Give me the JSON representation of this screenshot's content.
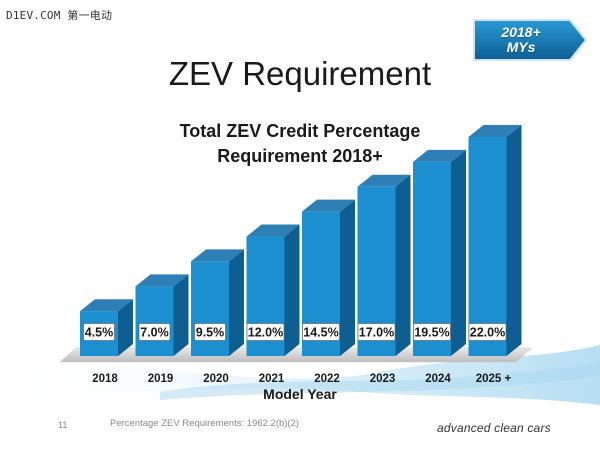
{
  "watermark": "D1EV.COM 第一电动",
  "badge": {
    "line1": "2018+",
    "line2": "MYs"
  },
  "page_title": "ZEV Requirement",
  "chart_data": {
    "type": "bar",
    "title_line1": "Total ZEV Credit Percentage",
    "title_line2": "Requirement 2018+",
    "xlabel": "Model Year",
    "ylabel": "",
    "categories": [
      "2018",
      "2019",
      "2020",
      "2021",
      "2022",
      "2023",
      "2024",
      "2025 +"
    ],
    "values": [
      4.5,
      7.0,
      9.5,
      12.0,
      14.5,
      17.0,
      19.5,
      22.0
    ],
    "data_labels": [
      "4.5%",
      "7.0%",
      "9.5%",
      "12.0%",
      "14.5%",
      "17.0%",
      "19.5%",
      "22.0%"
    ],
    "ylim": [
      0,
      22.0
    ],
    "grid": false,
    "legend": "none",
    "colors": {
      "bar_front": "#1b8fcf",
      "bar_side": "#0e5e92",
      "bar_top": "#2d7fb5"
    }
  },
  "footer": {
    "page_number": "11",
    "reference": "Percentage ZEV Requirements: 1962.2(b)(2)",
    "brand": "advanced clean cars"
  }
}
